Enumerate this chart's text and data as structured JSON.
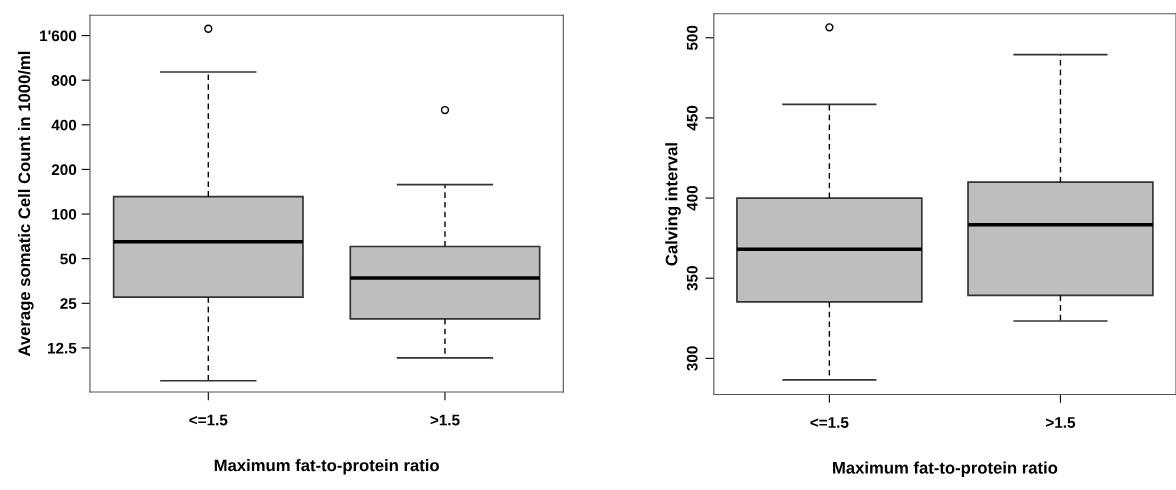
{
  "chart_data": [
    {
      "type": "box",
      "xlabel": "Maximum fat-to-protein ratio",
      "ylabel": "Average somatic Cell Count in 1000/ml",
      "categories": [
        "<=1.5",
        ">1.5"
      ],
      "log": true,
      "ylim": [
        6.3,
        2196
      ],
      "yticks": [
        12.5,
        25,
        50,
        100,
        200,
        400,
        800,
        {
          "value": 1600,
          "label": "1'600"
        }
      ],
      "grid": false,
      "legend": false,
      "series": [
        {
          "color": "#bebebe",
          "boxes": [
            {
              "low": 7.5,
              "q1": 27.5,
              "median": 65,
              "q3": 131,
              "high": 908,
              "outliers": [
                1779
              ]
            },
            {
              "low": 10.7,
              "q1": 19.6,
              "median": 37,
              "q3": 60.4,
              "high": 158,
              "outliers": [
                503
              ]
            }
          ]
        }
      ]
    },
    {
      "type": "box",
      "xlabel": "Maximum fat-to-protein ratio",
      "ylabel": "Calving interval",
      "categories": [
        "<=1.5",
        ">1.5"
      ],
      "ylim": [
        277.5,
        515
      ],
      "yticks": [
        300,
        350,
        400,
        450,
        500
      ],
      "grid": false,
      "legend": false,
      "series": [
        {
          "color": "#bebebe",
          "boxes": [
            {
              "low": 286.6,
              "q1": 335.2,
              "median": 368.1,
              "q3": 400,
              "high": 458.4,
              "outliers": [
                506.5
              ]
            },
            {
              "low": 323.3,
              "q1": 339.3,
              "median": 383.3,
              "q3": 409.9,
              "high": 489.5
            }
          ]
        }
      ]
    }
  ]
}
